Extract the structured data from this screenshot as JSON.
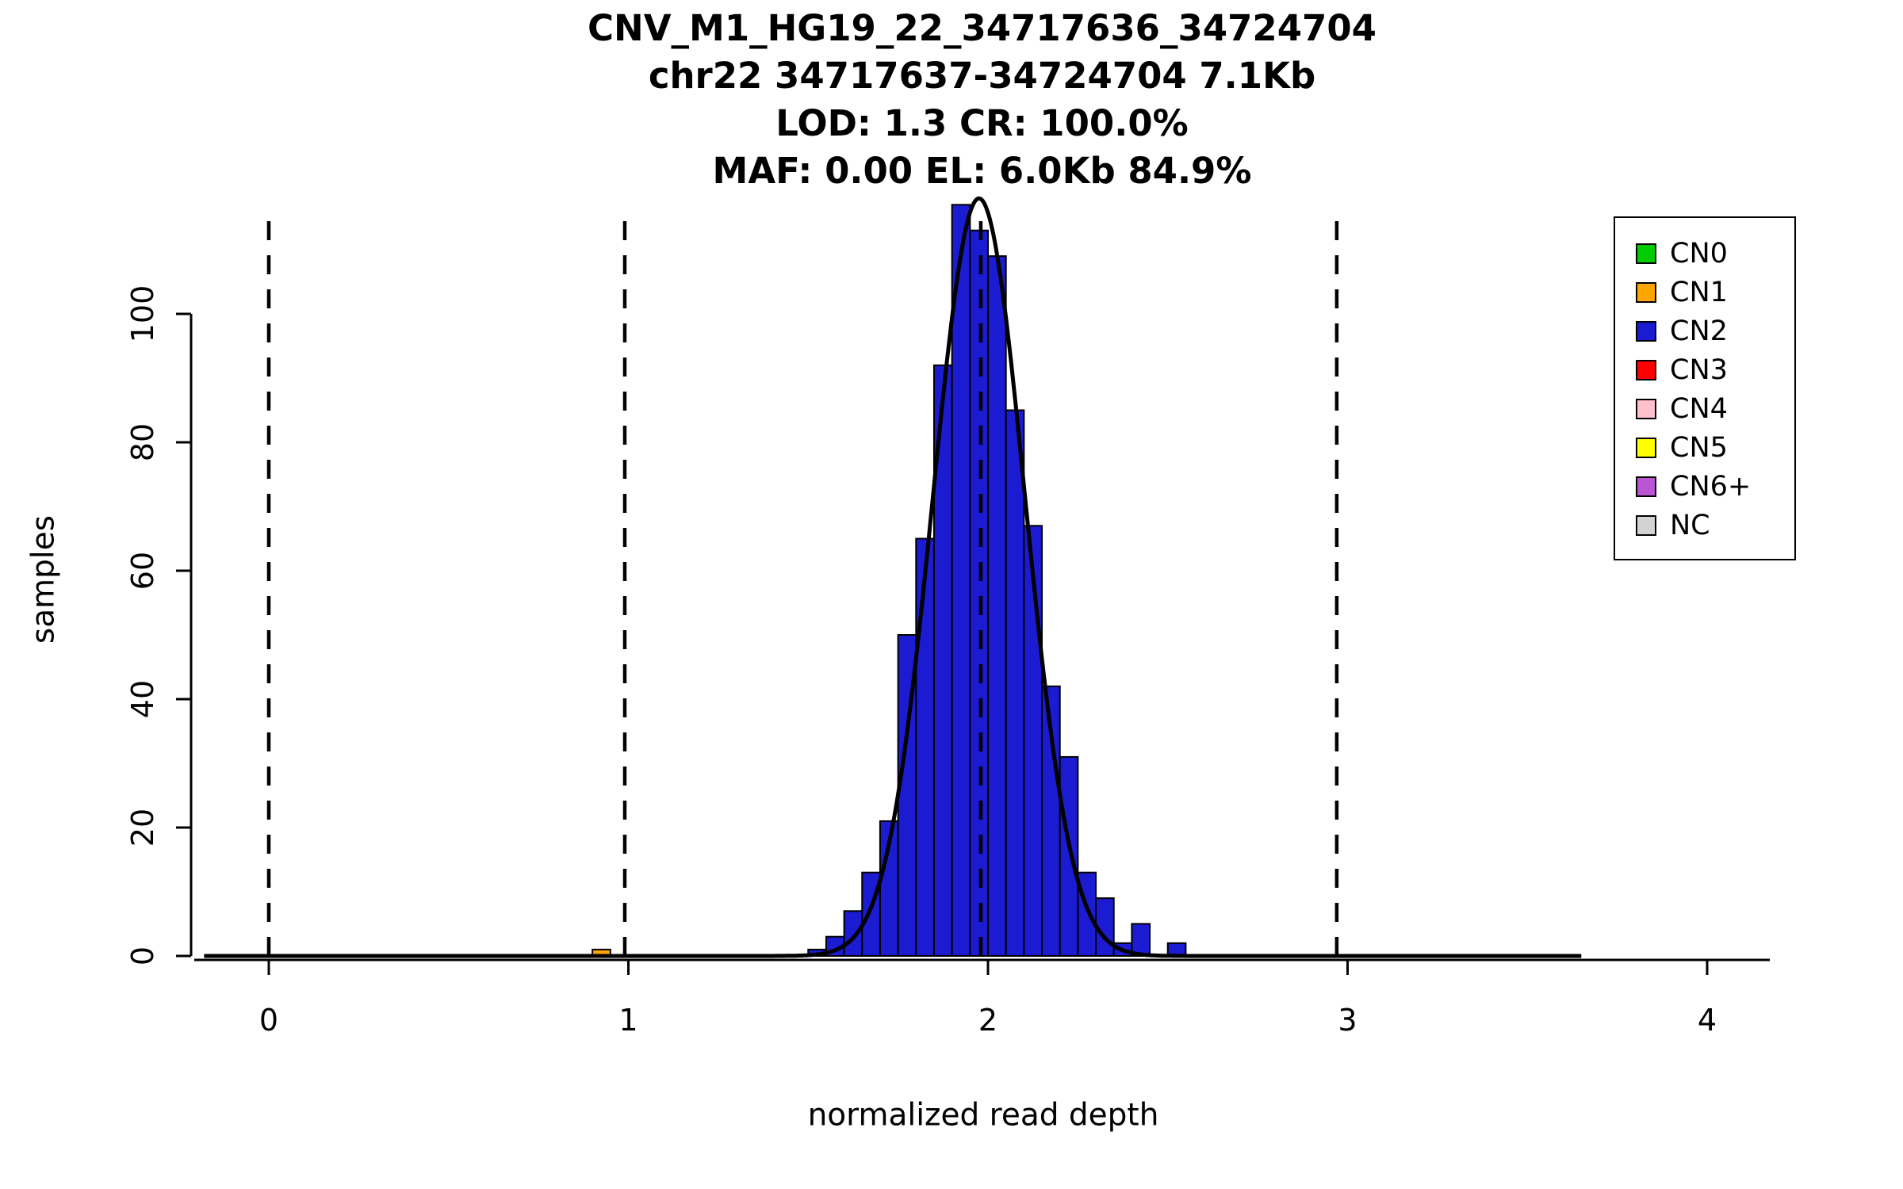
{
  "chart_data": {
    "type": "bar",
    "subtype": "histogram",
    "title_lines": [
      "CNV_M1_HG19_22_34717636_34724704",
      "chr22 34717637-34724704 7.1Kb",
      "LOD: 1.3 CR: 100.0%",
      "MAF: 0.00 EL: 6.0Kb 84.9%"
    ],
    "xlabel": "normalized read depth",
    "ylabel": "samples",
    "x_ticks": [
      0,
      1,
      2,
      3,
      4
    ],
    "y_ticks": [
      0,
      20,
      40,
      60,
      80,
      100
    ],
    "xlim": [
      -0.2,
      4.2
    ],
    "ylim": [
      0,
      118
    ],
    "grid": false,
    "bin_width": 0.05,
    "bar_border_color": "#000000",
    "series": [
      {
        "name": "CN1",
        "color": "#FFA500",
        "bins": [
          {
            "x": 0.9,
            "count": 1
          }
        ]
      },
      {
        "name": "CN2",
        "color": "#1B1BD1",
        "bins": [
          {
            "x": 1.5,
            "count": 1
          },
          {
            "x": 1.55,
            "count": 3
          },
          {
            "x": 1.6,
            "count": 7
          },
          {
            "x": 1.65,
            "count": 13
          },
          {
            "x": 1.7,
            "count": 21
          },
          {
            "x": 1.75,
            "count": 50
          },
          {
            "x": 1.8,
            "count": 65
          },
          {
            "x": 1.85,
            "count": 92
          },
          {
            "x": 1.9,
            "count": 117
          },
          {
            "x": 1.95,
            "count": 113
          },
          {
            "x": 2.0,
            "count": 109
          },
          {
            "x": 2.05,
            "count": 85
          },
          {
            "x": 2.1,
            "count": 67
          },
          {
            "x": 2.15,
            "count": 42
          },
          {
            "x": 2.2,
            "count": 31
          },
          {
            "x": 2.25,
            "count": 13
          },
          {
            "x": 2.3,
            "count": 9
          },
          {
            "x": 2.35,
            "count": 2
          },
          {
            "x": 2.4,
            "count": 5
          },
          {
            "x": 2.5,
            "count": 2
          }
        ]
      }
    ],
    "fit_curve": {
      "shape": "gaussian",
      "mean": 1.975,
      "sd": 0.128,
      "peak": 118,
      "color": "#000000",
      "x_range": [
        -0.18,
        3.65
      ]
    },
    "dashed_lines_x": [
      0,
      0.99,
      1.98,
      2.97
    ],
    "legend": {
      "position": "top-right",
      "entries": [
        {
          "label": "CN0",
          "color": "#00CC00"
        },
        {
          "label": "CN1",
          "color": "#FFA500"
        },
        {
          "label": "CN2",
          "color": "#1B1BD1"
        },
        {
          "label": "CN3",
          "color": "#FF0000"
        },
        {
          "label": "CN4",
          "color": "#FFC0CB"
        },
        {
          "label": "CN5",
          "color": "#FFFF00"
        },
        {
          "label": "CN6+",
          "color": "#BA55D3"
        },
        {
          "label": "NC",
          "color": "#D3D3D3"
        }
      ]
    }
  }
}
